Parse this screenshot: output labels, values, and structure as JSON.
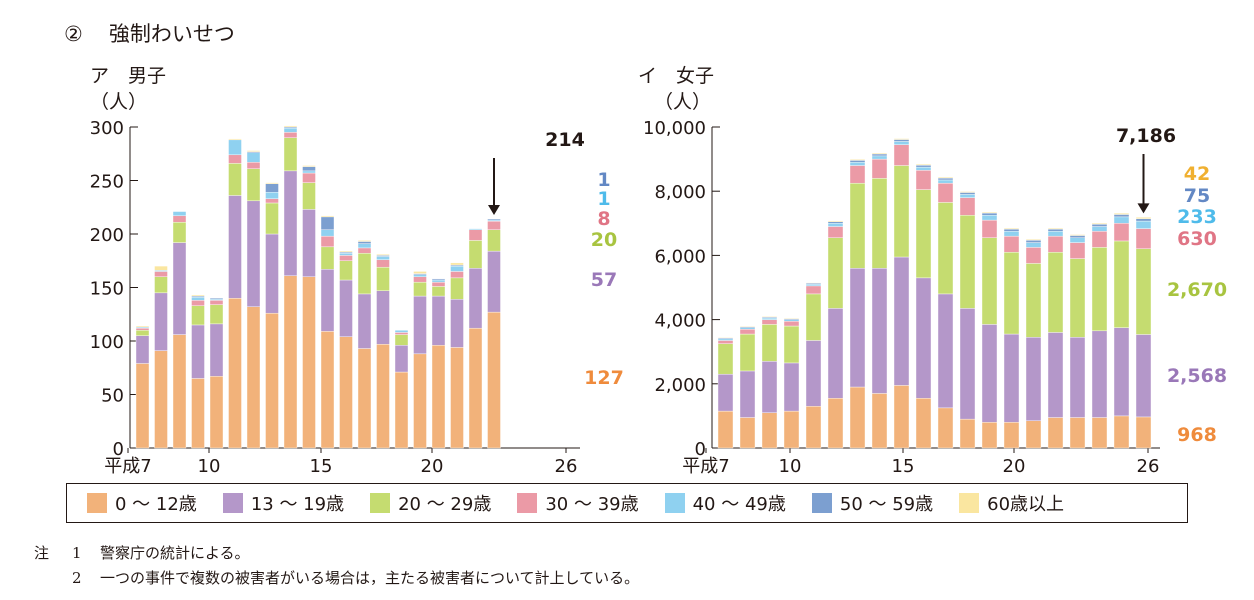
{
  "section": {
    "number": "②",
    "title": "強制わいせつ"
  },
  "chart_data": [
    {
      "type": "bar",
      "stacked": true,
      "title": "ア　男子",
      "ylabel": "（人）",
      "ylim": [
        0,
        300
      ],
      "yticks": [
        "0",
        "50",
        "100",
        "150",
        "200",
        "250",
        "300"
      ],
      "xtick_labels": [
        "平成7",
        "10",
        "15",
        "20",
        "26"
      ],
      "categories": [
        "平成7",
        "8",
        "9",
        "10",
        "11",
        "12",
        "13",
        "14",
        "15",
        "16",
        "17",
        "18",
        "19",
        "20",
        "21",
        "22",
        "23",
        "24",
        "25",
        "26"
      ],
      "total_label": "214",
      "series": [
        {
          "name": "0～12歳",
          "values": [
            79,
            91,
            106,
            65,
            67,
            140,
            132,
            126,
            161,
            160,
            109,
            104,
            93,
            97,
            71,
            88,
            96,
            94,
            112,
            127
          ]
        },
        {
          "name": "13～19歳",
          "values": [
            26,
            54,
            86,
            50,
            49,
            96,
            99,
            74,
            98,
            63,
            58,
            53,
            51,
            50,
            25,
            54,
            46,
            45,
            56,
            57
          ]
        },
        {
          "name": "20～29歳",
          "values": [
            5,
            15,
            19,
            18,
            18,
            30,
            30,
            29,
            31,
            25,
            21,
            18,
            38,
            22,
            10,
            13,
            9,
            20,
            26,
            20
          ]
        },
        {
          "name": "30～39歳",
          "values": [
            2,
            5,
            6,
            5,
            4,
            8,
            6,
            4,
            5,
            9,
            10,
            5,
            5,
            7,
            2,
            5,
            4,
            6,
            10,
            8
          ]
        },
        {
          "name": "40～49歳",
          "values": [
            1,
            1,
            4,
            3,
            1,
            14,
            9,
            6,
            4,
            2,
            6,
            2,
            4,
            3,
            2,
            2,
            2,
            5,
            1,
            1
          ]
        },
        {
          "name": "50～59歳",
          "values": [
            0,
            0,
            0,
            1,
            1,
            0,
            1,
            8,
            1,
            4,
            12,
            1,
            2,
            1,
            0,
            1,
            1,
            1,
            0,
            1
          ]
        },
        {
          "name": "60歳以上",
          "values": [
            1,
            4,
            0,
            1,
            0,
            1,
            1,
            1,
            1,
            1,
            1,
            1,
            1,
            1,
            0,
            2,
            0,
            2,
            0,
            0
          ]
        }
      ],
      "end_labels": [
        "127",
        "57",
        "20",
        "8",
        "1",
        "1"
      ]
    },
    {
      "type": "bar",
      "stacked": true,
      "title": "イ　女子",
      "ylabel": "（人）",
      "ylim": [
        0,
        10000
      ],
      "yticks": [
        "0",
        "2,000",
        "4,000",
        "6,000",
        "8,000",
        "10,000"
      ],
      "xtick_labels": [
        "平成7",
        "10",
        "15",
        "20",
        "26"
      ],
      "categories": [
        "平成7",
        "8",
        "9",
        "10",
        "11",
        "12",
        "13",
        "14",
        "15",
        "16",
        "17",
        "18",
        "19",
        "20",
        "21",
        "22",
        "23",
        "24",
        "25",
        "26"
      ],
      "total_label": "7,186",
      "series": [
        {
          "name": "0～12歳",
          "values": [
            1150,
            950,
            1100,
            1150,
            1300,
            1550,
            1900,
            1700,
            1950,
            1550,
            1250,
            900,
            800,
            800,
            850,
            950,
            950,
            950,
            1000,
            968
          ]
        },
        {
          "name": "13～19歳",
          "values": [
            1150,
            1450,
            1600,
            1500,
            2050,
            2800,
            3700,
            3900,
            4000,
            3750,
            3550,
            3450,
            3050,
            2750,
            2600,
            2650,
            2500,
            2700,
            2750,
            2568
          ]
        },
        {
          "name": "20～29歳",
          "values": [
            950,
            1150,
            1150,
            1150,
            1450,
            2200,
            2650,
            2800,
            2850,
            2750,
            2850,
            2900,
            2700,
            2550,
            2300,
            2500,
            2450,
            2600,
            2700,
            2670
          ]
        },
        {
          "name": "30～39歳",
          "values": [
            100,
            150,
            150,
            150,
            250,
            350,
            550,
            600,
            650,
            600,
            600,
            550,
            550,
            500,
            500,
            500,
            500,
            500,
            550,
            630
          ]
        },
        {
          "name": "40～49歳",
          "values": [
            50,
            50,
            50,
            50,
            50,
            100,
            100,
            100,
            100,
            100,
            100,
            100,
            150,
            150,
            150,
            150,
            150,
            150,
            200,
            233
          ]
        },
        {
          "name": "50～59歳",
          "values": [
            30,
            30,
            30,
            30,
            30,
            50,
            60,
            60,
            60,
            60,
            60,
            60,
            70,
            70,
            70,
            70,
            70,
            70,
            75,
            75
          ]
        },
        {
          "name": "60歳以上",
          "values": [
            20,
            20,
            20,
            20,
            20,
            30,
            30,
            30,
            30,
            30,
            30,
            30,
            30,
            30,
            30,
            30,
            30,
            30,
            40,
            42
          ]
        }
      ],
      "end_labels": [
        "968",
        "2,568",
        "2,670",
        "630",
        "233",
        "75",
        "42"
      ]
    }
  ],
  "legend": [
    {
      "label": "0 ～ 12歳",
      "color": "#f2b27a"
    },
    {
      "label": "13 ～ 19歳",
      "color": "#b497c9"
    },
    {
      "label": "20 ～ 29歳",
      "color": "#c5dc70"
    },
    {
      "label": "30 ～ 39歳",
      "color": "#eb9aa6"
    },
    {
      "label": "40 ～ 49歳",
      "color": "#8fd1f0"
    },
    {
      "label": "50 ～ 59歳",
      "color": "#7c9fd0"
    },
    {
      "label": "60歳以上",
      "color": "#fae6a0"
    }
  ],
  "label_colors": [
    "#ef8b3c",
    "#9a78b8",
    "#a8c440",
    "#e07585",
    "#4fbbea",
    "#6388c4",
    "#f0b030"
  ],
  "notes": {
    "prefix": "注",
    "items": [
      {
        "num": "1",
        "text": "警察庁の統計による。"
      },
      {
        "num": "2",
        "text": "一つの事件で複数の被害者がいる場合は，主たる被害者について計上している。"
      }
    ]
  }
}
